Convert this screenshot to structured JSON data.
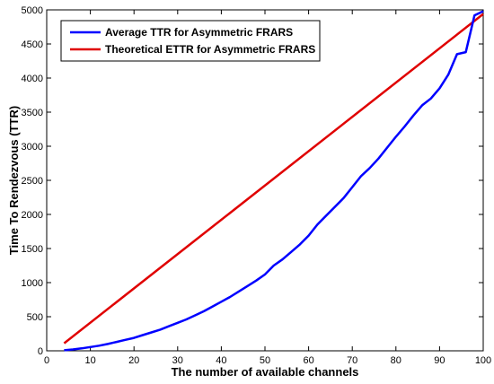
{
  "chart_data": {
    "type": "line",
    "xlabel": "The number of available channels",
    "ylabel": "Time To Rendezvous (TTR)",
    "xlim": [
      0,
      100
    ],
    "ylim": [
      0,
      5000
    ],
    "xticks": [
      "0",
      "10",
      "20",
      "30",
      "40",
      "50",
      "60",
      "70",
      "80",
      "90",
      "100"
    ],
    "yticks": [
      "0",
      "500",
      "1000",
      "1500",
      "2000",
      "2500",
      "3000",
      "3500",
      "4000",
      "4500",
      "5000"
    ],
    "grid": false,
    "legend_position": "top-left",
    "series": [
      {
        "name": "Average TTR for Asymmetric FRARS",
        "color": "#0000ff",
        "x": [
          4,
          6,
          8,
          10,
          12,
          14,
          16,
          18,
          20,
          22,
          24,
          26,
          28,
          30,
          32,
          34,
          36,
          38,
          40,
          42,
          44,
          46,
          48,
          50,
          52,
          54,
          56,
          58,
          60,
          62,
          64,
          66,
          68,
          70,
          72,
          74,
          76,
          78,
          80,
          82,
          84,
          86,
          88,
          90,
          92,
          94,
          96,
          98,
          100
        ],
        "y": [
          8,
          20,
          35,
          55,
          75,
          100,
          130,
          160,
          190,
          230,
          270,
          310,
          360,
          410,
          460,
          520,
          580,
          650,
          720,
          790,
          870,
          950,
          1030,
          1120,
          1250,
          1340,
          1450,
          1560,
          1690,
          1850,
          1980,
          2110,
          2240,
          2400,
          2560,
          2680,
          2820,
          2980,
          3140,
          3290,
          3450,
          3600,
          3700,
          3850,
          4050,
          4350,
          4380,
          4920,
          4980
        ]
      },
      {
        "name": "Theoretical ETTR for Asymmetric FRARS",
        "color": "#e00000",
        "x": [
          4,
          100
        ],
        "y": [
          110,
          4940
        ]
      }
    ]
  }
}
